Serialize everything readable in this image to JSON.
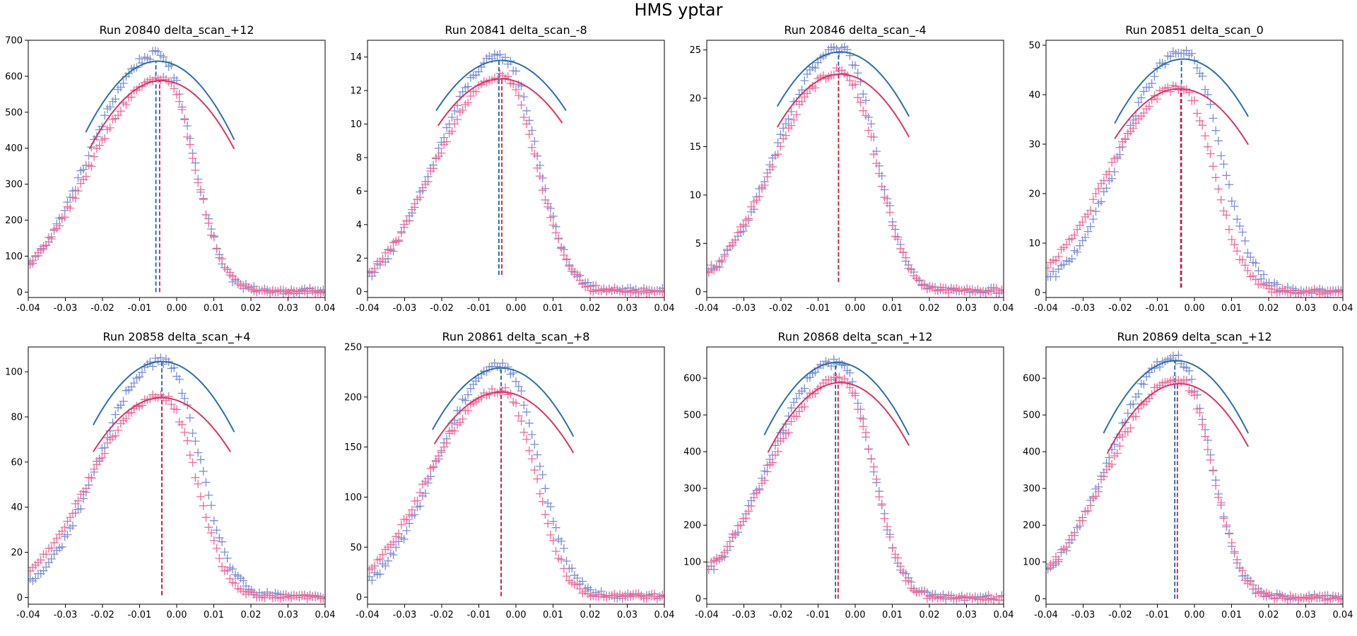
{
  "figure_title": "HMS yptar",
  "colors": {
    "fit_blue": "#2c6fab",
    "marker_blue": "#7b8fd6",
    "fit_red": "#d83563",
    "marker_red": "#f06a9a",
    "mean_blue": "#1f5fb0",
    "mean_red": "#d81d3a"
  },
  "chart_data": [
    {
      "type": "scatter",
      "title": "Run 20840 delta_scan_+12",
      "xlim": [
        -0.04,
        0.04
      ],
      "ylim": [
        -15,
        700
      ],
      "xticks": [
        "-0.04",
        "-0.03",
        "-0.02",
        "-0.01",
        "0.00",
        "0.01",
        "0.02",
        "0.03",
        "0.04"
      ],
      "yticks": [
        "0",
        "100",
        "200",
        "300",
        "400",
        "500",
        "600",
        "700"
      ],
      "series": [
        {
          "color": "blue",
          "peak": 660,
          "core_width": 0.0245,
          "edge_width": 0.0125,
          "fit": {
            "amplitude": 642,
            "center": -0.005,
            "range": [
              -0.0245,
              0.0155
            ],
            "curvature": 520000
          },
          "mean": -0.0056,
          "mean_base": 0
        },
        {
          "color": "red",
          "peak": 592,
          "core_width": 0.026,
          "edge_width": 0.012,
          "fit": {
            "amplitude": 588,
            "center": -0.004,
            "range": [
              -0.0235,
              0.0155
            ],
            "curvature": 500000
          },
          "mean": -0.0046,
          "mean_base": 0
        }
      ]
    },
    {
      "type": "scatter",
      "title": "Run 20841 delta_scan_-8",
      "xlim": [
        -0.04,
        0.04
      ],
      "ylim": [
        -0.35,
        15
      ],
      "xticks": [
        "-0.04",
        "-0.03",
        "-0.02",
        "-0.01",
        "0.00",
        "0.01",
        "0.02",
        "0.03",
        "0.04"
      ],
      "yticks": [
        "0",
        "2",
        "4",
        "6",
        "8",
        "10",
        "12",
        "14"
      ],
      "series": [
        {
          "color": "blue",
          "peak": 14.0,
          "core_width": 0.023,
          "edge_width": 0.013,
          "fit": {
            "amplitude": 13.8,
            "center": -0.004,
            "range": [
              -0.0215,
              0.0135
            ],
            "curvature": 9800
          },
          "mean": -0.0046,
          "mean_base": 1.0
        },
        {
          "color": "red",
          "peak": 12.8,
          "core_width": 0.024,
          "edge_width": 0.013,
          "fit": {
            "amplitude": 12.7,
            "center": -0.004,
            "range": [
              -0.021,
              0.0125
            ],
            "curvature": 9700
          },
          "mean": -0.0038,
          "mean_base": 1.0
        }
      ]
    },
    {
      "type": "scatter",
      "title": "Run 20846 delta_scan_-4",
      "xlim": [
        -0.04,
        0.04
      ],
      "ylim": [
        -0.6,
        26
      ],
      "xticks": [
        "-0.04",
        "-0.03",
        "-0.02",
        "-0.01",
        "0.00",
        "0.01",
        "0.02",
        "0.03",
        "0.04"
      ],
      "yticks": [
        "0",
        "5",
        "10",
        "15",
        "20",
        "25"
      ],
      "series": [
        {
          "color": "blue",
          "peak": 25.0,
          "core_width": 0.023,
          "edge_width": 0.013,
          "fit": {
            "amplitude": 24.8,
            "center": -0.004,
            "range": [
              -0.021,
              0.0145
            ],
            "curvature": 19500
          },
          "mean": -0.0045,
          "mean_base": 1.0
        },
        {
          "color": "red",
          "peak": 22.8,
          "core_width": 0.024,
          "edge_width": 0.013,
          "fit": {
            "amplitude": 22.5,
            "center": -0.004,
            "range": [
              -0.021,
              0.0145
            ],
            "curvature": 19000
          },
          "mean": -0.0045,
          "mean_base": 1.0
        }
      ]
    },
    {
      "type": "scatter",
      "title": "Run 20851 delta_scan_0",
      "xlim": [
        -0.04,
        0.04
      ],
      "ylim": [
        -1,
        51
      ],
      "xticks": [
        "-0.04",
        "-0.03",
        "-0.02",
        "-0.01",
        "0.00",
        "0.01",
        "0.02",
        "0.03",
        "0.04"
      ],
      "yticks": [
        "0",
        "10",
        "20",
        "30",
        "40",
        "50"
      ],
      "series": [
        {
          "color": "blue",
          "peak": 48.5,
          "core_width": 0.0225,
          "edge_width": 0.0135,
          "fit": {
            "amplitude": 47.2,
            "center": -0.003,
            "range": [
              -0.0215,
              0.0145
            ],
            "curvature": 38000
          },
          "mean": -0.0035,
          "mean_base": 1.0
        },
        {
          "color": "red",
          "peak": 41.5,
          "core_width": 0.0255,
          "edge_width": 0.0125,
          "fit": {
            "amplitude": 41.2,
            "center": -0.004,
            "range": [
              -0.0215,
              0.0145
            ],
            "curvature": 33000
          },
          "mean": -0.0037,
          "mean_base": 1.0
        }
      ]
    },
    {
      "type": "scatter",
      "title": "Run 20858 delta_scan_+4",
      "xlim": [
        -0.04,
        0.04
      ],
      "ylim": [
        -3,
        111
      ],
      "xticks": [
        "-0.04",
        "-0.03",
        "-0.02",
        "-0.01",
        "0.00",
        "0.01",
        "0.02",
        "0.03",
        "0.04"
      ],
      "yticks": [
        "0",
        "20",
        "40",
        "60",
        "80",
        "100"
      ],
      "series": [
        {
          "color": "blue",
          "peak": 105,
          "core_width": 0.0225,
          "edge_width": 0.0135,
          "fit": {
            "amplitude": 104.5,
            "center": -0.004,
            "range": [
              -0.0225,
              0.0155
            ],
            "curvature": 82000
          },
          "mean": -0.004,
          "mean_base": 1.0
        },
        {
          "color": "red",
          "peak": 89,
          "core_width": 0.026,
          "edge_width": 0.0125,
          "fit": {
            "amplitude": 88.5,
            "center": -0.004,
            "range": [
              -0.0225,
              0.0145
            ],
            "curvature": 70000
          },
          "mean": -0.004,
          "mean_base": 1.0
        }
      ]
    },
    {
      "type": "scatter",
      "title": "Run 20861 delta_scan_+8",
      "xlim": [
        -0.04,
        0.04
      ],
      "ylim": [
        -7,
        250
      ],
      "xticks": [
        "-0.04",
        "-0.03",
        "-0.02",
        "-0.01",
        "0.00",
        "0.01",
        "0.02",
        "0.03",
        "0.04"
      ],
      "yticks": [
        "0",
        "50",
        "100",
        "150",
        "200",
        "250"
      ],
      "series": [
        {
          "color": "blue",
          "peak": 232,
          "core_width": 0.023,
          "edge_width": 0.0135,
          "fit": {
            "amplitude": 229,
            "center": -0.004,
            "range": [
              -0.0225,
              0.0155
            ],
            "curvature": 180000
          },
          "mean": -0.004,
          "mean_base": 1.0
        },
        {
          "color": "red",
          "peak": 207,
          "core_width": 0.026,
          "edge_width": 0.0125,
          "fit": {
            "amplitude": 205,
            "center": -0.004,
            "range": [
              -0.022,
              0.0155
            ],
            "curvature": 160000
          },
          "mean": -0.004,
          "mean_base": 1.0
        }
      ]
    },
    {
      "type": "scatter",
      "title": "Run 20868 delta_scan_+12",
      "xlim": [
        -0.04,
        0.04
      ],
      "ylim": [
        -15,
        685
      ],
      "xticks": [
        "-0.04",
        "-0.03",
        "-0.02",
        "-0.01",
        "0.00",
        "0.01",
        "0.02",
        "0.03",
        "0.04"
      ],
      "yticks": [
        "0",
        "100",
        "200",
        "300",
        "400",
        "500",
        "600"
      ],
      "series": [
        {
          "color": "blue",
          "peak": 645,
          "core_width": 0.024,
          "edge_width": 0.0125,
          "fit": {
            "amplitude": 643,
            "center": -0.005,
            "range": [
              -0.0245,
              0.0145
            ],
            "curvature": 520000
          },
          "mean": -0.0053,
          "mean_base": 0
        },
        {
          "color": "red",
          "peak": 595,
          "core_width": 0.026,
          "edge_width": 0.012,
          "fit": {
            "amplitude": 588,
            "center": -0.004,
            "range": [
              -0.0235,
              0.0145
            ],
            "curvature": 500000
          },
          "mean": -0.0046,
          "mean_base": 0
        }
      ]
    },
    {
      "type": "scatter",
      "title": "Run 20869 delta_scan_+12",
      "xlim": [
        -0.04,
        0.04
      ],
      "ylim": [
        -15,
        685
      ],
      "xticks": [
        "-0.04",
        "-0.03",
        "-0.02",
        "-0.01",
        "0.00",
        "0.01",
        "0.02",
        "0.03",
        "0.04"
      ],
      "yticks": [
        "0",
        "100",
        "200",
        "300",
        "400",
        "500",
        "600"
      ],
      "series": [
        {
          "color": "blue",
          "peak": 655,
          "core_width": 0.024,
          "edge_width": 0.0125,
          "fit": {
            "amplitude": 648,
            "center": -0.005,
            "range": [
              -0.0245,
              0.0145
            ],
            "curvature": 520000
          },
          "mean": -0.0053,
          "mean_base": 0
        },
        {
          "color": "red",
          "peak": 595,
          "core_width": 0.026,
          "edge_width": 0.012,
          "fit": {
            "amplitude": 585,
            "center": -0.004,
            "range": [
              -0.0235,
              0.0145
            ],
            "curvature": 500000
          },
          "mean": -0.0046,
          "mean_base": 0
        }
      ]
    }
  ]
}
